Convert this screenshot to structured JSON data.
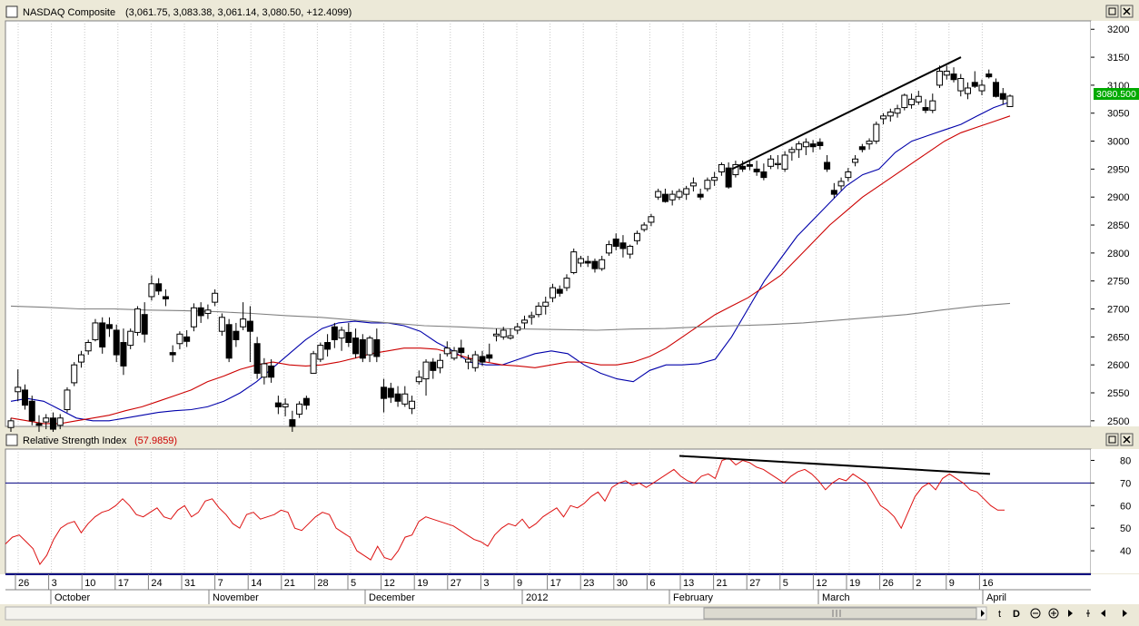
{
  "main_panel": {
    "title": "NASDAQ Composite",
    "ohlc_readout": "(3,061.75, 3,083.38, 3,061.14, 3,080.50, +12.4099)",
    "last_price_label": "3080.500",
    "y_ticks": [
      3200,
      3150,
      3100,
      3050,
      3000,
      2950,
      2900,
      2850,
      2800,
      2750,
      2700,
      2650,
      2600,
      2550,
      2500
    ],
    "ylim": [
      2490,
      3215
    ]
  },
  "rsi_panel": {
    "title": "Relative Strength Index",
    "value": "(57.9859)",
    "y_ticks": [
      80,
      70,
      60,
      50,
      40
    ],
    "ylim": [
      30,
      85
    ],
    "reference_line": 70
  },
  "x_axis": {
    "day_labels": [
      "26",
      "3",
      "10",
      "17",
      "24",
      "31",
      "7",
      "14",
      "21",
      "28",
      "5",
      "12",
      "19",
      "27",
      "3",
      "9",
      "17",
      "23",
      "30",
      "6",
      "13",
      "21",
      "27",
      "5",
      "12",
      "19",
      "26",
      "2",
      "9",
      "16"
    ],
    "month_labels": [
      "October",
      "November",
      "December",
      "2012",
      "February",
      "March",
      "April"
    ]
  },
  "chart_data": {
    "type": "candlestick",
    "x_start": "2011-09-23",
    "candles": [
      [
        2488,
        2505,
        2480,
        2500
      ],
      [
        2552,
        2592,
        2535,
        2560
      ],
      [
        2555,
        2565,
        2520,
        2528
      ],
      [
        2535,
        2545,
        2492,
        2500
      ],
      [
        2495,
        2510,
        2478,
        2492
      ],
      [
        2498,
        2512,
        2485,
        2505
      ],
      [
        2505,
        2515,
        2478,
        2485
      ],
      [
        2492,
        2512,
        2485,
        2505
      ],
      [
        2520,
        2560,
        2515,
        2555
      ],
      [
        2568,
        2605,
        2562,
        2600
      ],
      [
        2605,
        2625,
        2595,
        2618
      ],
      [
        2625,
        2645,
        2618,
        2640
      ],
      [
        2645,
        2682,
        2642,
        2675
      ],
      [
        2675,
        2685,
        2620,
        2632
      ],
      [
        2672,
        2685,
        2650,
        2665
      ],
      [
        2662,
        2672,
        2605,
        2618
      ],
      [
        2640,
        2665,
        2582,
        2598
      ],
      [
        2635,
        2665,
        2628,
        2660
      ],
      [
        2658,
        2705,
        2652,
        2700
      ],
      [
        2690,
        2712,
        2640,
        2655
      ],
      [
        2722,
        2760,
        2715,
        2745
      ],
      [
        2745,
        2755,
        2725,
        2732
      ],
      [
        2722,
        2735,
        2705,
        2718
      ],
      [
        2622,
        2635,
        2605,
        2618
      ],
      [
        2638,
        2660,
        2628,
        2655
      ],
      [
        2650,
        2662,
        2632,
        2642
      ],
      [
        2668,
        2710,
        2660,
        2702
      ],
      [
        2702,
        2712,
        2675,
        2688
      ],
      [
        2692,
        2708,
        2682,
        2698
      ],
      [
        2712,
        2735,
        2705,
        2728
      ],
      [
        2660,
        2692,
        2652,
        2685
      ],
      [
        2672,
        2682,
        2605,
        2612
      ],
      [
        2660,
        2675,
        2632,
        2645
      ],
      [
        2668,
        2712,
        2662,
        2682
      ],
      [
        2678,
        2705,
        2605,
        2660
      ],
      [
        2638,
        2650,
        2575,
        2585
      ],
      [
        2578,
        2612,
        2565,
        2602
      ],
      [
        2598,
        2610,
        2568,
        2578
      ],
      [
        2532,
        2545,
        2512,
        2525
      ],
      [
        2525,
        2540,
        2508,
        2530
      ],
      [
        2502,
        2518,
        2480,
        2490
      ],
      [
        2512,
        2535,
        2505,
        2530
      ],
      [
        2540,
        2545,
        2520,
        2528
      ],
      [
        2585,
        2625,
        2585,
        2620
      ],
      [
        2610,
        2640,
        2605,
        2635
      ],
      [
        2640,
        2655,
        2615,
        2628
      ],
      [
        2668,
        2675,
        2630,
        2645
      ],
      [
        2648,
        2668,
        2625,
        2662
      ],
      [
        2658,
        2675,
        2632,
        2640
      ],
      [
        2648,
        2665,
        2612,
        2620
      ],
      [
        2645,
        2655,
        2605,
        2612
      ],
      [
        2618,
        2652,
        2605,
        2648
      ],
      [
        2645,
        2665,
        2605,
        2615
      ],
      [
        2560,
        2575,
        2515,
        2540
      ],
      [
        2558,
        2568,
        2532,
        2542
      ],
      [
        2548,
        2562,
        2525,
        2535
      ],
      [
        2530,
        2562,
        2525,
        2548
      ],
      [
        2522,
        2545,
        2512,
        2535
      ],
      [
        2570,
        2590,
        2565,
        2578
      ],
      [
        2575,
        2610,
        2545,
        2605
      ],
      [
        2605,
        2612,
        2575,
        2590
      ],
      [
        2595,
        2620,
        2585,
        2608
      ],
      [
        2620,
        2642,
        2615,
        2630
      ],
      [
        2612,
        2632,
        2608,
        2625
      ],
      [
        2630,
        2645,
        2612,
        2622
      ],
      [
        2605,
        2618,
        2592,
        2610
      ],
      [
        2595,
        2625,
        2588,
        2618
      ],
      [
        2615,
        2625,
        2598,
        2605
      ],
      [
        2618,
        2638,
        2605,
        2612
      ],
      [
        2652,
        2665,
        2642,
        2655
      ],
      [
        2650,
        2668,
        2645,
        2662
      ],
      [
        2648,
        2665,
        2645,
        2652
      ],
      [
        2662,
        2675,
        2655,
        2668
      ],
      [
        2675,
        2688,
        2665,
        2680
      ],
      [
        2685,
        2695,
        2672,
        2688
      ],
      [
        2690,
        2712,
        2685,
        2705
      ],
      [
        2705,
        2722,
        2690,
        2712
      ],
      [
        2720,
        2745,
        2712,
        2738
      ],
      [
        2735,
        2742,
        2722,
        2728
      ],
      [
        2738,
        2762,
        2732,
        2755
      ],
      [
        2765,
        2808,
        2762,
        2802
      ],
      [
        2782,
        2795,
        2775,
        2790
      ],
      [
        2785,
        2795,
        2775,
        2782
      ],
      [
        2785,
        2790,
        2765,
        2772
      ],
      [
        2772,
        2795,
        2768,
        2788
      ],
      [
        2800,
        2822,
        2795,
        2815
      ],
      [
        2825,
        2835,
        2805,
        2812
      ],
      [
        2818,
        2832,
        2792,
        2808
      ],
      [
        2798,
        2815,
        2790,
        2812
      ],
      [
        2822,
        2840,
        2815,
        2835
      ],
      [
        2842,
        2855,
        2838,
        2850
      ],
      [
        2855,
        2870,
        2848,
        2865
      ],
      [
        2900,
        2915,
        2895,
        2910
      ],
      [
        2905,
        2915,
        2890,
        2892
      ],
      [
        2895,
        2912,
        2885,
        2905
      ],
      [
        2900,
        2915,
        2895,
        2910
      ],
      [
        2905,
        2920,
        2895,
        2915
      ],
      [
        2920,
        2935,
        2910,
        2925
      ],
      [
        2905,
        2915,
        2895,
        2900
      ],
      [
        2915,
        2935,
        2910,
        2930
      ],
      [
        2930,
        2945,
        2920,
        2935
      ],
      [
        2945,
        2962,
        2938,
        2958
      ],
      [
        2952,
        2962,
        2915,
        2918
      ],
      [
        2940,
        2965,
        2935,
        2958
      ],
      [
        2955,
        2965,
        2945,
        2950
      ],
      [
        2958,
        2965,
        2948,
        2955
      ],
      [
        2950,
        2965,
        2938,
        2945
      ],
      [
        2945,
        2960,
        2930,
        2935
      ],
      [
        2955,
        2975,
        2950,
        2968
      ],
      [
        2958,
        2975,
        2950,
        2960
      ],
      [
        2950,
        2982,
        2945,
        2975
      ],
      [
        2980,
        2990,
        2965,
        2985
      ],
      [
        2985,
        3000,
        2970,
        2995
      ],
      [
        2990,
        3005,
        2975,
        2998
      ],
      [
        2995,
        3002,
        2980,
        2990
      ],
      [
        2998,
        3005,
        2985,
        2992
      ],
      [
        2962,
        2975,
        2945,
        2950
      ],
      [
        2912,
        2925,
        2898,
        2905
      ],
      [
        2920,
        2935,
        2912,
        2928
      ],
      [
        2935,
        2952,
        2928,
        2945
      ],
      [
        2962,
        2975,
        2955,
        2968
      ],
      [
        2990,
        2995,
        2980,
        2985
      ],
      [
        2995,
        3005,
        2985,
        3000
      ],
      [
        3000,
        3035,
        2995,
        3030
      ],
      [
        3040,
        3050,
        3030,
        3045
      ],
      [
        3045,
        3058,
        3035,
        3052
      ],
      [
        3050,
        3065,
        3042,
        3058
      ],
      [
        3060,
        3085,
        3055,
        3082
      ],
      [
        3065,
        3085,
        3058,
        3075
      ],
      [
        3070,
        3090,
        3065,
        3080
      ],
      [
        3060,
        3075,
        3050,
        3055
      ],
      [
        3055,
        3085,
        3050,
        3072
      ],
      [
        3100,
        3135,
        3095,
        3125
      ],
      [
        3118,
        3135,
        3110,
        3125
      ],
      [
        3120,
        3132,
        3105,
        3110
      ],
      [
        3090,
        3120,
        3080,
        3112
      ],
      [
        3085,
        3105,
        3075,
        3095
      ],
      [
        3105,
        3125,
        3095,
        3098
      ],
      [
        3090,
        3110,
        3082,
        3100
      ],
      [
        3120,
        3128,
        3112,
        3115
      ],
      [
        3105,
        3112,
        3078,
        3080
      ],
      [
        3085,
        3095,
        3065,
        3075
      ],
      [
        3061.75,
        3083.38,
        3061.14,
        3080.5
      ]
    ],
    "moving_averages": [
      {
        "series": "blue",
        "color": "#0000aa",
        "values": [
          2535,
          2540,
          2535,
          2520,
          2505,
          2500,
          2500,
          2505,
          2510,
          2515,
          2518,
          2520,
          2525,
          2535,
          2550,
          2570,
          2595,
          2620,
          2645,
          2665,
          2675,
          2678,
          2675,
          2675,
          2670,
          2660,
          2640,
          2625,
          2605,
          2600,
          2600,
          2610,
          2620,
          2625,
          2620,
          2600,
          2585,
          2575,
          2570,
          2590,
          2600,
          2600,
          2602,
          2610,
          2650,
          2700,
          2750,
          2790,
          2830,
          2860,
          2890,
          2920,
          2940,
          2950,
          2980,
          3000,
          3010,
          3020,
          3030,
          3045,
          3060,
          3070
        ]
      },
      {
        "series": "red",
        "color": "#cc0000",
        "values": [
          2505,
          2500,
          2495,
          2495,
          2500,
          2505,
          2510,
          2518,
          2525,
          2535,
          2545,
          2555,
          2570,
          2580,
          2592,
          2600,
          2605,
          2600,
          2598,
          2600,
          2605,
          2612,
          2620,
          2625,
          2630,
          2630,
          2628,
          2620,
          2612,
          2605,
          2600,
          2598,
          2595,
          2600,
          2605,
          2605,
          2600,
          2600,
          2605,
          2615,
          2630,
          2650,
          2670,
          2690,
          2705,
          2720,
          2740,
          2760,
          2790,
          2820,
          2850,
          2875,
          2900,
          2920,
          2940,
          2960,
          2980,
          3000,
          3015,
          3025,
          3035,
          3045
        ]
      },
      {
        "series": "gray",
        "color": "#808080",
        "values": [
          2705,
          2703,
          2700,
          2700,
          2698,
          2697,
          2695,
          2692,
          2688,
          2685,
          2680,
          2675,
          2670,
          2668,
          2665,
          2664,
          2663,
          2662,
          2664,
          2665,
          2668,
          2670,
          2672,
          2675,
          2680,
          2685,
          2690,
          2698,
          2705,
          2710
        ]
      }
    ],
    "trendlines": [
      {
        "panel": "price",
        "from": [
          2950
        ],
        "to": [
          3150
        ]
      },
      {
        "panel": "rsi",
        "from": [
          82
        ],
        "to": [
          74
        ]
      }
    ],
    "rsi": [
      43,
      46,
      47,
      44,
      41,
      34,
      38,
      45,
      50,
      52,
      53,
      48,
      52,
      55,
      57,
      58,
      60,
      63,
      60,
      56,
      55,
      57,
      59,
      55,
      54,
      58,
      60,
      55,
      57,
      62,
      63,
      59,
      56,
      52,
      50,
      56,
      57,
      54,
      55,
      56,
      58,
      57,
      50,
      49,
      52,
      55,
      57,
      56,
      50,
      48,
      46,
      40,
      38,
      36,
      42,
      37,
      36,
      40,
      46,
      47,
      53,
      55,
      54,
      53,
      52,
      51,
      49,
      47,
      45,
      44,
      42,
      47,
      50,
      52,
      51,
      54,
      50,
      52,
      55,
      57,
      59,
      55,
      60,
      59,
      61,
      64,
      66,
      62,
      68,
      70,
      71,
      69,
      70,
      68,
      70,
      72,
      74,
      76,
      73,
      71,
      70,
      73,
      74,
      72,
      80,
      81,
      78,
      80,
      79,
      77,
      76,
      74,
      72,
      70,
      73,
      75,
      76,
      74,
      71,
      67,
      70,
      72,
      71,
      74,
      72,
      70,
      65,
      60,
      58,
      55,
      50,
      57,
      64,
      68,
      70,
      67,
      72,
      74,
      72,
      70,
      67,
      66,
      63,
      60,
      58,
      58
    ]
  }
}
